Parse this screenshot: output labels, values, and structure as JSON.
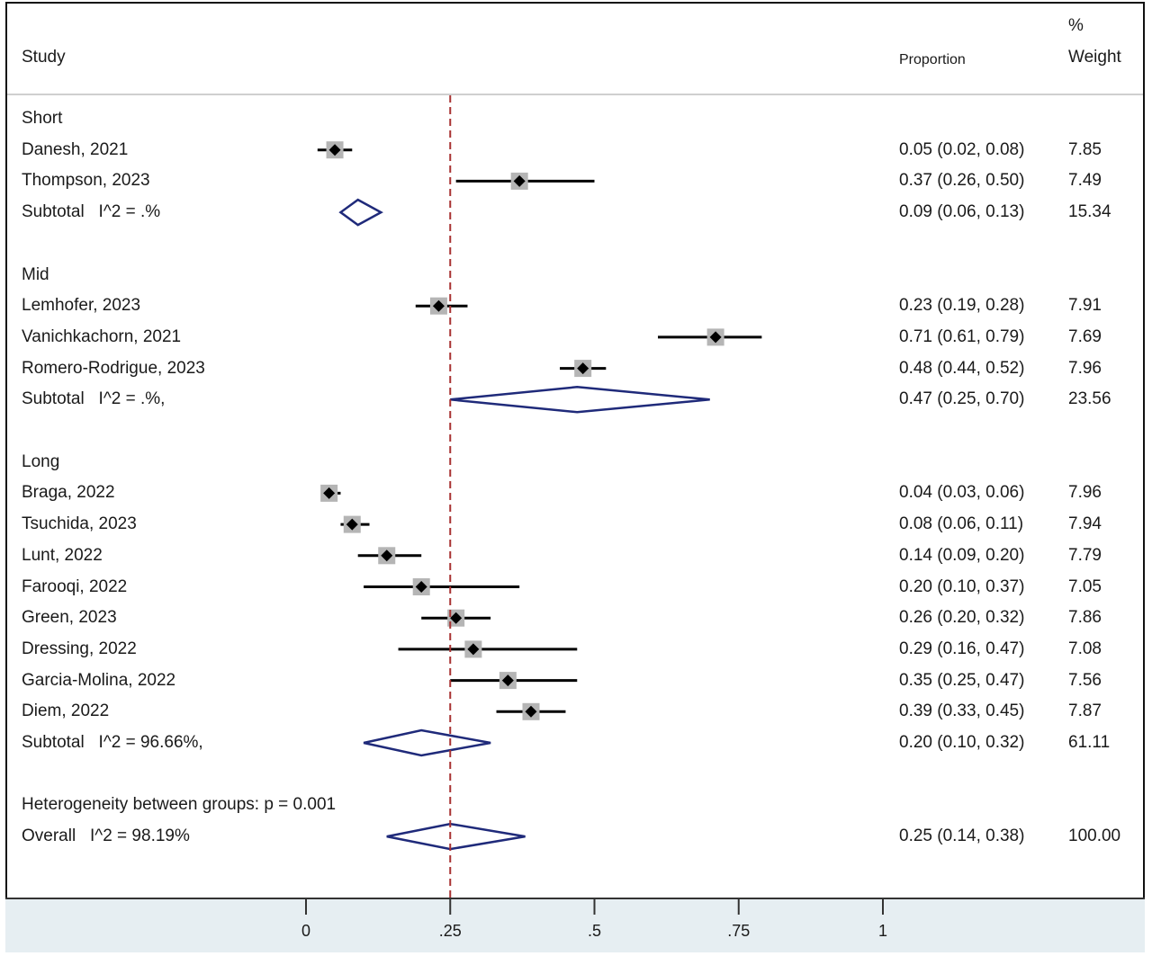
{
  "header": {
    "study": "Study",
    "proportion": "Proportion",
    "weight_line1": "%",
    "weight_line2": "Weight"
  },
  "chart_data": {
    "type": "forest",
    "reference_line": 0.25,
    "x_ticks": [
      0,
      0.25,
      0.5,
      0.75,
      1
    ],
    "x_tick_labels": [
      "0",
      ".25",
      ".5",
      ".75",
      "1"
    ],
    "xlim": [
      0,
      1
    ],
    "rows": [
      {
        "kind": "group",
        "label": "Short"
      },
      {
        "kind": "study",
        "label": "Danesh, 2021",
        "est": 0.05,
        "lo": 0.02,
        "hi": 0.08,
        "ci": "0.05 (0.02, 0.08)",
        "weight": "7.85"
      },
      {
        "kind": "study",
        "label": "Thompson, 2023",
        "est": 0.37,
        "lo": 0.26,
        "hi": 0.5,
        "ci": "0.37 (0.26, 0.50)",
        "weight": "7.49"
      },
      {
        "kind": "subtotal",
        "label": "Subtotal   I^2 = .%",
        "est": 0.09,
        "lo": 0.06,
        "hi": 0.13,
        "ci": "0.09 (0.06, 0.13)",
        "weight": "15.34"
      },
      {
        "kind": "blank"
      },
      {
        "kind": "group",
        "label": "Mid"
      },
      {
        "kind": "study",
        "label": "Lemhofer, 2023",
        "est": 0.23,
        "lo": 0.19,
        "hi": 0.28,
        "ci": "0.23 (0.19, 0.28)",
        "weight": "7.91"
      },
      {
        "kind": "study",
        "label": "Vanichkachorn, 2021",
        "est": 0.71,
        "lo": 0.61,
        "hi": 0.79,
        "ci": "0.71 (0.61, 0.79)",
        "weight": "7.69"
      },
      {
        "kind": "study",
        "label": "Romero-Rodrigue, 2023",
        "est": 0.48,
        "lo": 0.44,
        "hi": 0.52,
        "ci": "0.48 (0.44, 0.52)",
        "weight": "7.96"
      },
      {
        "kind": "subtotal",
        "label": "Subtotal   I^2 = .%,",
        "est": 0.47,
        "lo": 0.25,
        "hi": 0.7,
        "ci": "0.47 (0.25, 0.70)",
        "weight": "23.56"
      },
      {
        "kind": "blank"
      },
      {
        "kind": "group",
        "label": "Long"
      },
      {
        "kind": "study",
        "label": "Braga, 2022",
        "est": 0.04,
        "lo": 0.03,
        "hi": 0.06,
        "ci": "0.04 (0.03, 0.06)",
        "weight": "7.96"
      },
      {
        "kind": "study",
        "label": "Tsuchida, 2023",
        "est": 0.08,
        "lo": 0.06,
        "hi": 0.11,
        "ci": "0.08 (0.06, 0.11)",
        "weight": "7.94"
      },
      {
        "kind": "study",
        "label": "Lunt, 2022",
        "est": 0.14,
        "lo": 0.09,
        "hi": 0.2,
        "ci": "0.14 (0.09, 0.20)",
        "weight": "7.79"
      },
      {
        "kind": "study",
        "label": "Farooqi, 2022",
        "est": 0.2,
        "lo": 0.1,
        "hi": 0.37,
        "ci": "0.20 (0.10, 0.37)",
        "weight": "7.05"
      },
      {
        "kind": "study",
        "label": "Green, 2023",
        "est": 0.26,
        "lo": 0.2,
        "hi": 0.32,
        "ci": "0.26 (0.20, 0.32)",
        "weight": "7.86"
      },
      {
        "kind": "study",
        "label": "Dressing, 2022",
        "est": 0.29,
        "lo": 0.16,
        "hi": 0.47,
        "ci": "0.29 (0.16, 0.47)",
        "weight": "7.08"
      },
      {
        "kind": "study",
        "label": "Garcia-Molina, 2022",
        "est": 0.35,
        "lo": 0.25,
        "hi": 0.47,
        "ci": "0.35 (0.25, 0.47)",
        "weight": "7.56"
      },
      {
        "kind": "study",
        "label": "Diem, 2022",
        "est": 0.39,
        "lo": 0.33,
        "hi": 0.45,
        "ci": "0.39 (0.33, 0.45)",
        "weight": "7.87"
      },
      {
        "kind": "subtotal",
        "label": "Subtotal   I^2 = 96.66%,",
        "est": 0.2,
        "lo": 0.1,
        "hi": 0.32,
        "ci": "0.20 (0.10, 0.32)",
        "weight": "61.11"
      },
      {
        "kind": "blank"
      },
      {
        "kind": "note",
        "label": "Heterogeneity between groups: p = 0.001"
      },
      {
        "kind": "overall",
        "label": "Overall   I^2 = 98.19%",
        "est": 0.25,
        "lo": 0.14,
        "hi": 0.38,
        "ci": "0.25 (0.14, 0.38)",
        "weight": "100.00"
      }
    ],
    "colors": {
      "diamond": "#1f2a7a",
      "reference_line": "#a83232",
      "marker": "#000000",
      "weight_box": "#b5b5b5",
      "axis_band": "#e6eef2"
    }
  }
}
